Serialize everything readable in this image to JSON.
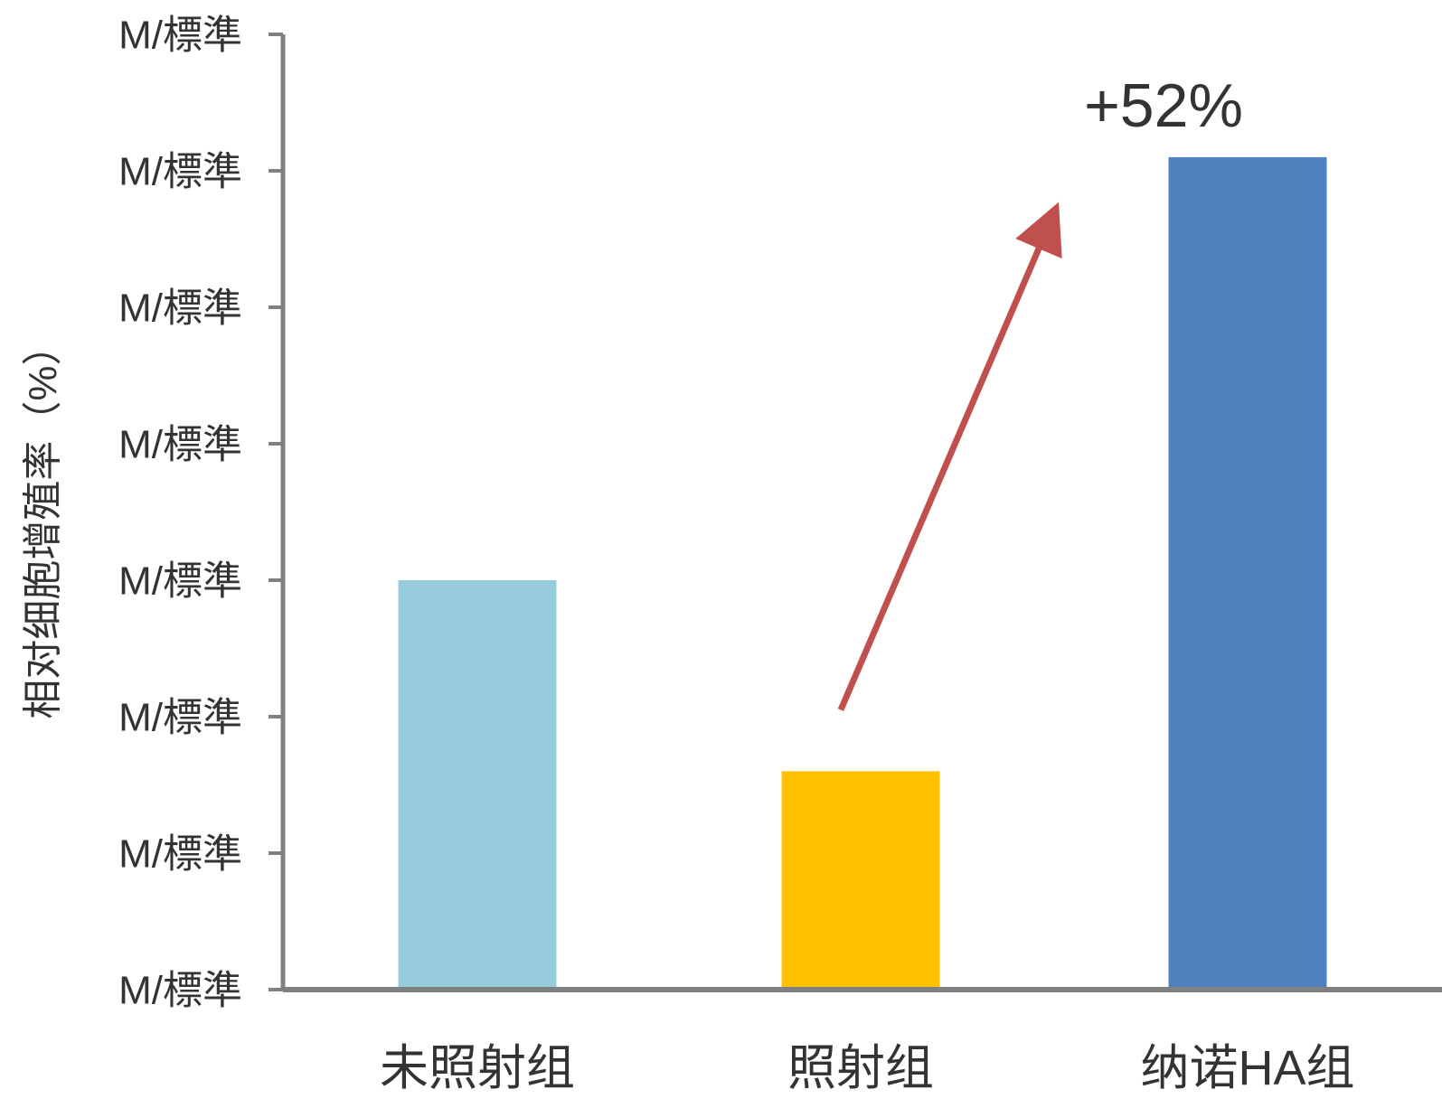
{
  "chart_data": {
    "type": "bar",
    "title": "",
    "xlabel": "",
    "ylabel": "相对细胞增殖率（%）",
    "categories": [
      "未照射组",
      "照射组",
      "纳诺HA组"
    ],
    "values": [
      60,
      32,
      122
    ],
    "ylim": [
      0,
      140
    ],
    "yticks": [
      0,
      20,
      40,
      60,
      80,
      100,
      120,
      140
    ],
    "ytick_labels": [
      "M/標準",
      "M/標準",
      "M/標準",
      "M/標準",
      "M/標準",
      "M/標準",
      "M/標準",
      "M/標準"
    ],
    "bar_colors": [
      "#96cbdc",
      "#ffc000",
      "#4f81bd"
    ],
    "axis_color": "#808080",
    "grid": false,
    "legend": "none",
    "annotation": {
      "text": "+52%",
      "arrow_from": {
        "category": "照射组",
        "value": 41
      },
      "arrow_to": {
        "category": "照射组",
        "value": 112
      },
      "arrow_color": "#c0504d"
    }
  }
}
